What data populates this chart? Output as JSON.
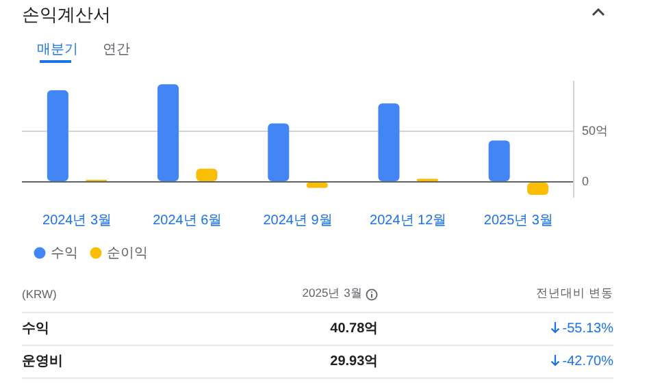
{
  "chart_data": {
    "type": "bar",
    "title": "손익계산서",
    "subtitle": "매분기",
    "categories": [
      "2024년 3월",
      "2024년 6월",
      "2024년 9월",
      "2024년 12월",
      "2025년 3월"
    ],
    "series": [
      {
        "name": "수익",
        "color": "#4285f4",
        "values": [
          91,
          97,
          58,
          78,
          41
        ]
      },
      {
        "name": "순이익",
        "color": "#fbbc04",
        "values": [
          2,
          13,
          -6,
          3,
          -13
        ]
      }
    ],
    "ylim": [
      -15,
      100
    ],
    "yticks": [
      0,
      {
        "value": 50,
        "label": "50억"
      }
    ],
    "grid": "y",
    "legend": "bottom left",
    "annotations": [
      "연간",
      "(KRW)",
      "2025년 3월",
      "전년대비 변동",
      "수익",
      "40.78억",
      "-55.13%",
      "운영비",
      "29.93억",
      "-42.70%"
    ]
  }
}
